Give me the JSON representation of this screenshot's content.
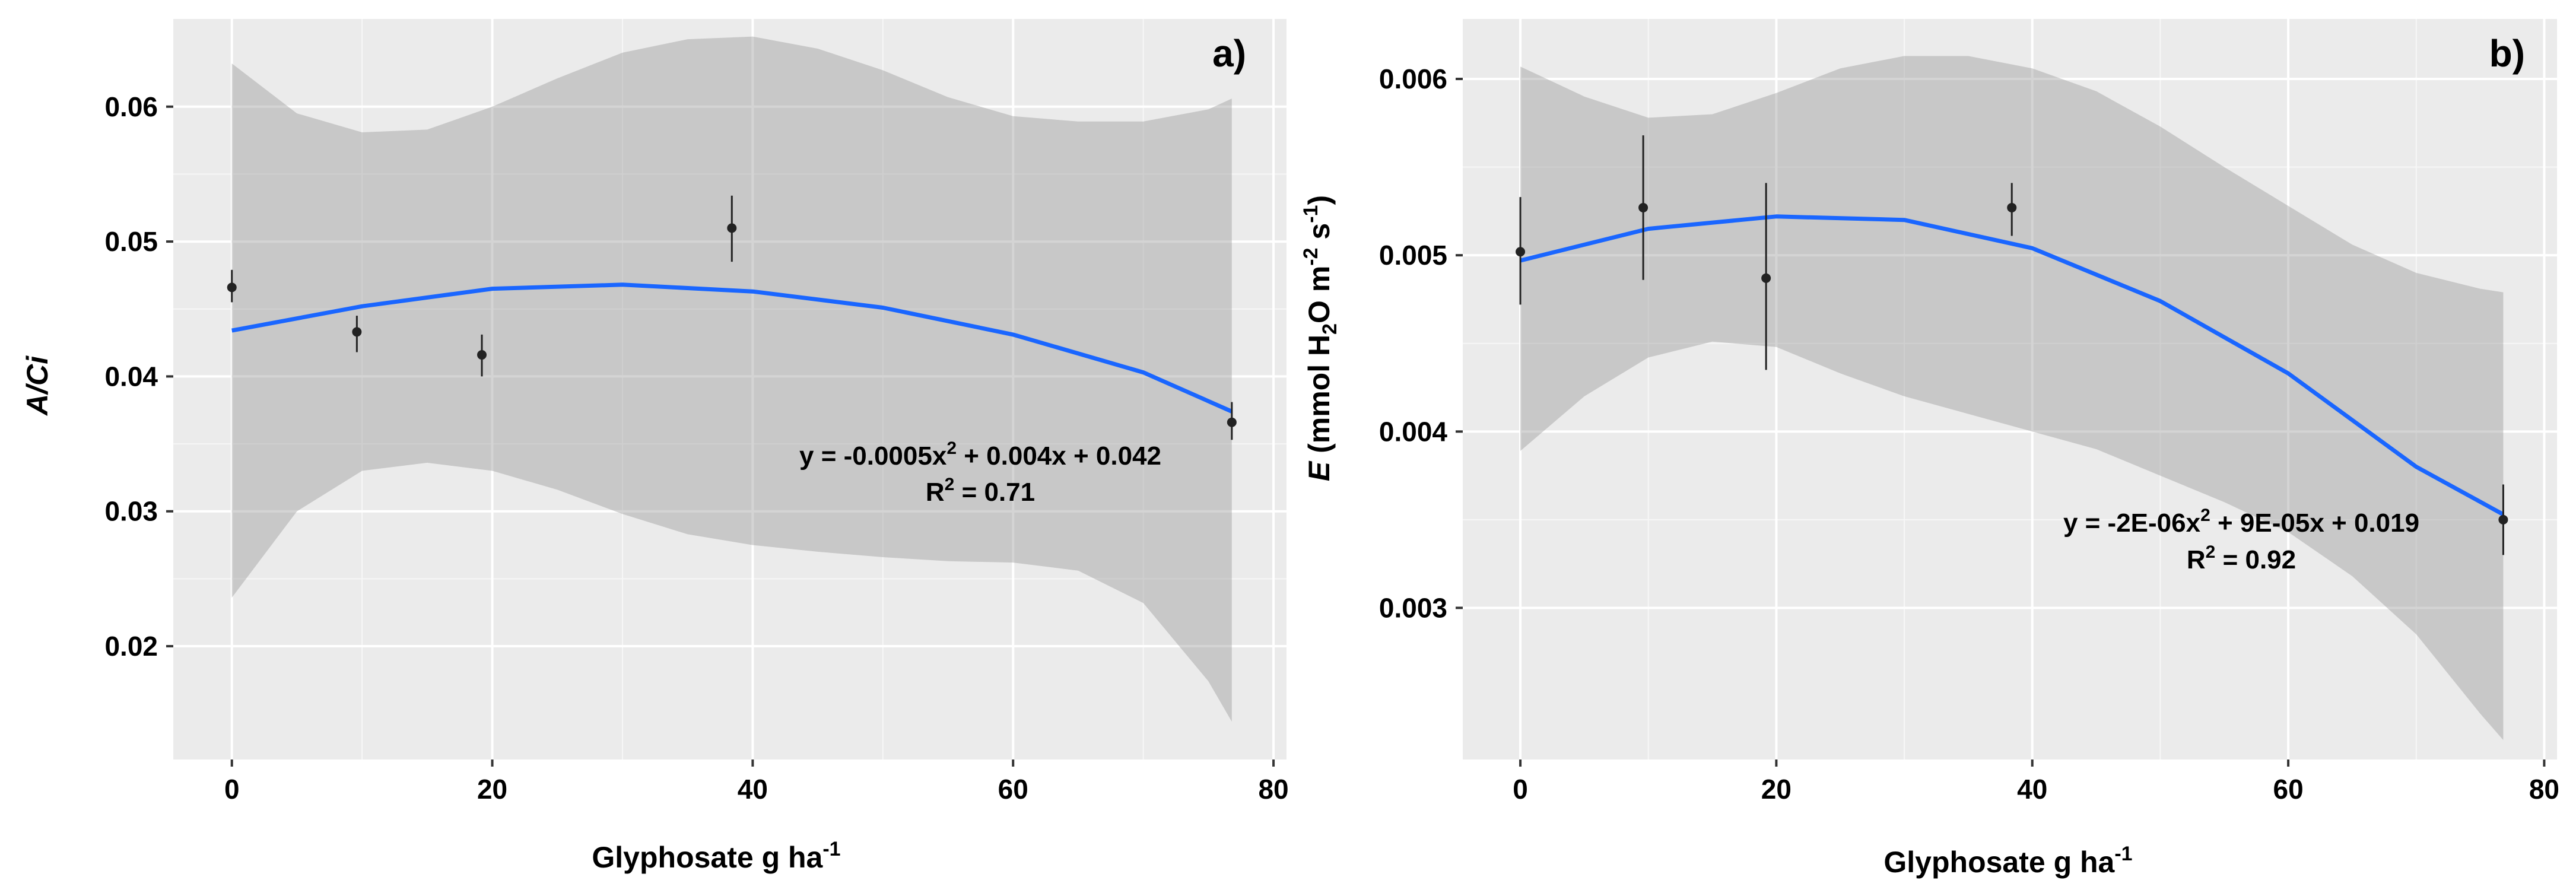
{
  "figure": {
    "panels": [
      {
        "tag": "a)",
        "x_label": {
          "main": "Glyphosate g ha",
          "sup": "-1"
        },
        "y_label": {
          "italic": "A/Ci"
        },
        "equation_line": {
          "a": "y = -0.0005x",
          "sup": "2",
          "b": " + 0.004x + 0.042"
        },
        "r2_line": {
          "a": "R",
          "sup": "2",
          "b": " = 0.71"
        }
      },
      {
        "tag": "b)",
        "x_label": {
          "main": "Glyphosate g ha",
          "sup": "-1"
        },
        "y_label": {
          "italic": "E",
          "p1": " (mmol H",
          "sub": "2",
          "p2": "O m",
          "sup1": "-2",
          "p3": " s",
          "sup2": "-1",
          "p4": ")"
        },
        "equation_line": {
          "a": "y = -2E-06x",
          "sup": "2",
          "b": " + 9E-05x + 0.019"
        },
        "r2_line": {
          "a": "R",
          "sup": "2",
          "b": " = 0.92"
        }
      }
    ]
  },
  "chart_data": [
    {
      "type": "scatter",
      "title": "",
      "panel_tag": "a)",
      "xlabel": "Glyphosate g ha-1",
      "ylabel": "A/Ci",
      "xlim": [
        -4.5,
        81
      ],
      "ylim": [
        0.0116,
        0.0665
      ],
      "xticks": [
        0,
        20,
        40,
        60,
        80
      ],
      "yticks": [
        0.02,
        0.03,
        0.04,
        0.05,
        0.06
      ],
      "ytick_labels": [
        "0.02",
        "0.03",
        "0.04",
        "0.05",
        "0.06"
      ],
      "grid": true,
      "background": "#ebebeb",
      "points": [
        {
          "x": 0,
          "y": 0.0466,
          "err_low": 0.0455,
          "err_high": 0.0479
        },
        {
          "x": 9.6,
          "y": 0.0433,
          "err_low": 0.0418,
          "err_high": 0.0445
        },
        {
          "x": 19.2,
          "y": 0.0416,
          "err_low": 0.04,
          "err_high": 0.0431
        },
        {
          "x": 38.4,
          "y": 0.051,
          "err_low": 0.0485,
          "err_high": 0.0534
        },
        {
          "x": 76.8,
          "y": 0.0366,
          "err_low": 0.0353,
          "err_high": 0.0381
        }
      ],
      "fit": {
        "equation": "y = -0.0005x2 + 0.004x + 0.042",
        "r2": "0.71",
        "color": "#1a66ff",
        "line": [
          {
            "x": 0,
            "y": 0.0434
          },
          {
            "x": 10,
            "y": 0.0452
          },
          {
            "x": 20,
            "y": 0.0465
          },
          {
            "x": 30,
            "y": 0.0468
          },
          {
            "x": 40,
            "y": 0.0463
          },
          {
            "x": 50,
            "y": 0.0451
          },
          {
            "x": 60,
            "y": 0.0431
          },
          {
            "x": 70,
            "y": 0.0403
          },
          {
            "x": 76.8,
            "y": 0.0374
          }
        ],
        "ci_upper": [
          {
            "x": 0,
            "y": 0.0632
          },
          {
            "x": 5,
            "y": 0.0595
          },
          {
            "x": 10,
            "y": 0.0581
          },
          {
            "x": 15,
            "y": 0.0583
          },
          {
            "x": 20,
            "y": 0.06
          },
          {
            "x": 25,
            "y": 0.0621
          },
          {
            "x": 30,
            "y": 0.064
          },
          {
            "x": 35,
            "y": 0.065
          },
          {
            "x": 40,
            "y": 0.0652
          },
          {
            "x": 45,
            "y": 0.0643
          },
          {
            "x": 50,
            "y": 0.0627
          },
          {
            "x": 55,
            "y": 0.0607
          },
          {
            "x": 60,
            "y": 0.0593
          },
          {
            "x": 65,
            "y": 0.0589
          },
          {
            "x": 70,
            "y": 0.0589
          },
          {
            "x": 75,
            "y": 0.0598
          },
          {
            "x": 76.8,
            "y": 0.0606
          }
        ],
        "ci_lower": [
          {
            "x": 0,
            "y": 0.0236
          },
          {
            "x": 5,
            "y": 0.03
          },
          {
            "x": 10,
            "y": 0.033
          },
          {
            "x": 15,
            "y": 0.0336
          },
          {
            "x": 20,
            "y": 0.033
          },
          {
            "x": 25,
            "y": 0.0316
          },
          {
            "x": 30,
            "y": 0.0298
          },
          {
            "x": 35,
            "y": 0.0283
          },
          {
            "x": 40,
            "y": 0.0275
          },
          {
            "x": 45,
            "y": 0.027
          },
          {
            "x": 50,
            "y": 0.0266
          },
          {
            "x": 55,
            "y": 0.0263
          },
          {
            "x": 60,
            "y": 0.0262
          },
          {
            "x": 65,
            "y": 0.0256
          },
          {
            "x": 70,
            "y": 0.0232
          },
          {
            "x": 75,
            "y": 0.0174
          },
          {
            "x": 76.8,
            "y": 0.0144
          }
        ]
      }
    },
    {
      "type": "scatter",
      "title": "",
      "panel_tag": "b)",
      "xlabel": "Glyphosate g ha-1",
      "ylabel": "E (mmol H2O m-2 s-1)",
      "xlim": [
        -4.5,
        81
      ],
      "ylim": [
        0.00214,
        0.00634
      ],
      "xticks": [
        0,
        20,
        40,
        60,
        80
      ],
      "yticks": [
        0.003,
        0.004,
        0.005,
        0.006
      ],
      "ytick_labels": [
        "0.003",
        "0.004",
        "0.005",
        "0.006"
      ],
      "grid": true,
      "background": "#ebebeb",
      "points": [
        {
          "x": 0,
          "y": 0.00502,
          "err_low": 0.00472,
          "err_high": 0.00533
        },
        {
          "x": 9.6,
          "y": 0.00527,
          "err_low": 0.00486,
          "err_high": 0.00568
        },
        {
          "x": 19.2,
          "y": 0.00487,
          "err_low": 0.00435,
          "err_high": 0.00541
        },
        {
          "x": 38.4,
          "y": 0.00527,
          "err_low": 0.00511,
          "err_high": 0.00541
        },
        {
          "x": 76.8,
          "y": 0.0035,
          "err_low": 0.0033,
          "err_high": 0.0037
        }
      ],
      "fit": {
        "equation": "y = -2E-06x2 + 9E-05x + 0.019",
        "r2": "0.92",
        "color": "#1a66ff",
        "line": [
          {
            "x": 0,
            "y": 0.00497
          },
          {
            "x": 10,
            "y": 0.00515
          },
          {
            "x": 20,
            "y": 0.00522
          },
          {
            "x": 30,
            "y": 0.0052
          },
          {
            "x": 40,
            "y": 0.00504
          },
          {
            "x": 50,
            "y": 0.00474
          },
          {
            "x": 60,
            "y": 0.00433
          },
          {
            "x": 70,
            "y": 0.0038
          },
          {
            "x": 76.8,
            "y": 0.00353
          }
        ],
        "ci_upper": [
          {
            "x": 0,
            "y": 0.00607
          },
          {
            "x": 5,
            "y": 0.0059
          },
          {
            "x": 10,
            "y": 0.00578
          },
          {
            "x": 15,
            "y": 0.0058
          },
          {
            "x": 20,
            "y": 0.00592
          },
          {
            "x": 25,
            "y": 0.00606
          },
          {
            "x": 30,
            "y": 0.00613
          },
          {
            "x": 35,
            "y": 0.00613
          },
          {
            "x": 40,
            "y": 0.00606
          },
          {
            "x": 45,
            "y": 0.00593
          },
          {
            "x": 50,
            "y": 0.00573
          },
          {
            "x": 55,
            "y": 0.0055
          },
          {
            "x": 60,
            "y": 0.00528
          },
          {
            "x": 65,
            "y": 0.00506
          },
          {
            "x": 70,
            "y": 0.0049
          },
          {
            "x": 75,
            "y": 0.00481
          },
          {
            "x": 76.8,
            "y": 0.00479
          }
        ],
        "ci_lower": [
          {
            "x": 0,
            "y": 0.00389
          },
          {
            "x": 5,
            "y": 0.0042
          },
          {
            "x": 10,
            "y": 0.00442
          },
          {
            "x": 15,
            "y": 0.00451
          },
          {
            "x": 20,
            "y": 0.00448
          },
          {
            "x": 25,
            "y": 0.00433
          },
          {
            "x": 30,
            "y": 0.0042
          },
          {
            "x": 35,
            "y": 0.0041
          },
          {
            "x": 40,
            "y": 0.004
          },
          {
            "x": 45,
            "y": 0.0039
          },
          {
            "x": 50,
            "y": 0.00375
          },
          {
            "x": 55,
            "y": 0.0036
          },
          {
            "x": 60,
            "y": 0.00343
          },
          {
            "x": 65,
            "y": 0.00318
          },
          {
            "x": 70,
            "y": 0.00285
          },
          {
            "x": 75,
            "y": 0.0024
          },
          {
            "x": 76.8,
            "y": 0.00225
          }
        ]
      }
    }
  ]
}
